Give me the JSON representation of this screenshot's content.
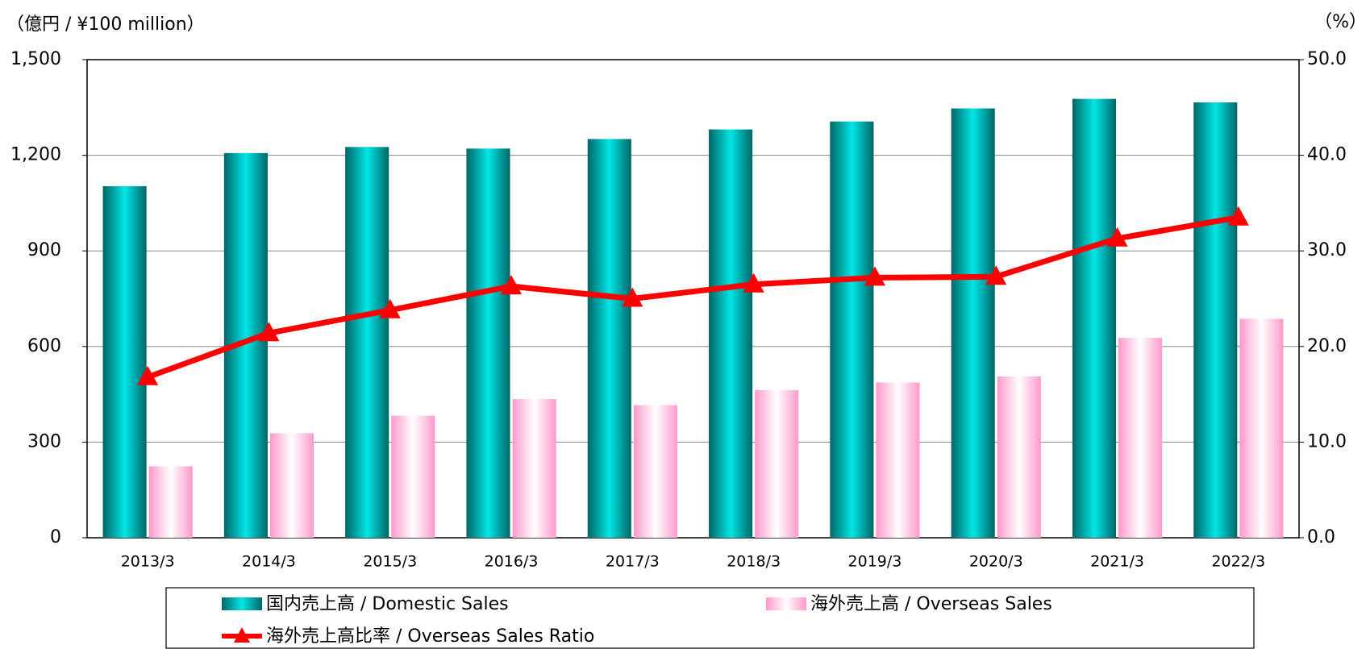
{
  "chart_data": {
    "type": "bar",
    "y_axis_label": "（億円 / ¥100 million）",
    "y2_axis_label": "（%）",
    "categories": [
      "2013/3",
      "2014/3",
      "2015/3",
      "2016/3",
      "2017/3",
      "2018/3",
      "2019/3",
      "2020/3",
      "2021/3",
      "2022/3"
    ],
    "series": [
      {
        "name": "国内売上高 / Domestic Sales",
        "color": "#00e6e6",
        "values": [
          1103,
          1207,
          1226,
          1221,
          1251,
          1281,
          1306,
          1347,
          1377,
          1366
        ]
      },
      {
        "name": "海外売上高 / Overseas Sales",
        "color": "#ff99cc",
        "values": [
          224,
          328,
          383,
          435,
          416,
          463,
          487,
          506,
          627,
          687
        ]
      },
      {
        "name": "海外売上高比率 / Overseas Sales Ratio",
        "color": "#ff0000",
        "type": "line",
        "axis": "y2",
        "values": [
          16.8,
          21.4,
          23.8,
          26.3,
          25.0,
          26.5,
          27.2,
          27.3,
          31.3,
          33.5
        ]
      }
    ],
    "ylim": [
      0,
      1500
    ],
    "yticks": [
      0,
      300,
      600,
      900,
      {
        "value": 1200,
        "label": "1,200"
      },
      {
        "value": 1500,
        "label": "1,500"
      }
    ],
    "y2lim": [
      0,
      50
    ],
    "y2ticks": [
      {
        "value": 0,
        "label": "0.0"
      },
      {
        "value": 10,
        "label": "10.0"
      },
      {
        "value": 20,
        "label": "20.0"
      },
      {
        "value": 30,
        "label": "30.0"
      },
      {
        "value": 40,
        "label": "40.0"
      },
      {
        "value": 50,
        "label": "50.0"
      }
    ],
    "grid": true
  }
}
